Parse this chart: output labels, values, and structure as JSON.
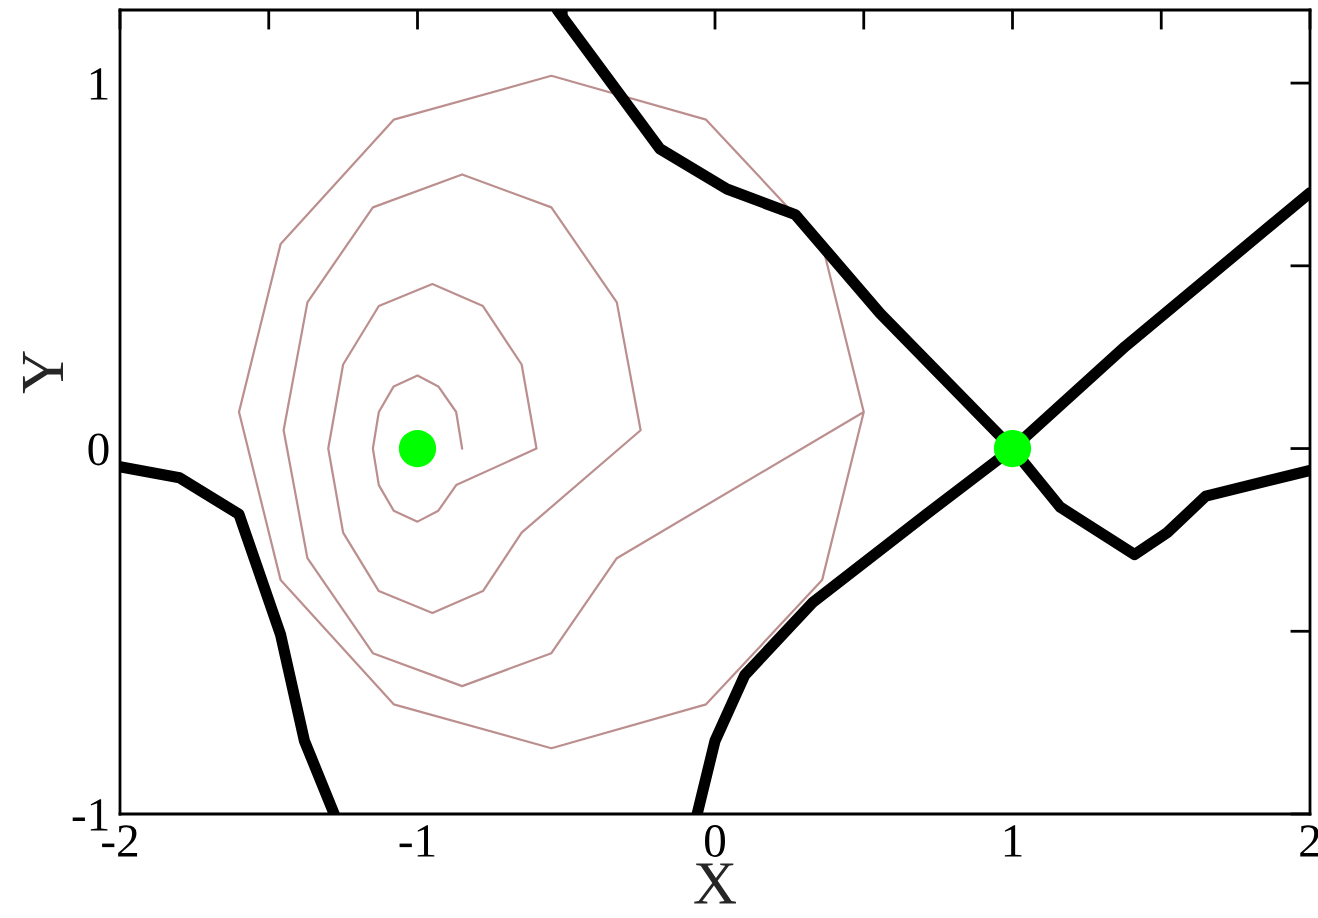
{
  "chart_data": {
    "type": "line",
    "xlabel": "X",
    "ylabel": "Y",
    "xlim": [
      -2,
      2
    ],
    "ylim": [
      -1,
      1.2
    ],
    "xticks": [
      -2,
      {
        "value": -1.5,
        "label": null
      },
      -1,
      {
        "value": -0.5,
        "label": null
      },
      0,
      {
        "value": 0.5,
        "label": null
      },
      1,
      {
        "value": 1.5,
        "label": null
      },
      2
    ],
    "yticks": [
      -1,
      {
        "value": -0.5,
        "label": null
      },
      0,
      {
        "value": 0.5,
        "label": null
      },
      1
    ],
    "grid": false,
    "legend": false,
    "series": [
      {
        "color": "#bc8f8f",
        "marker": "none",
        "x": [
          -0.85,
          -0.87,
          -0.93,
          -1.0,
          -1.08,
          -1.13,
          -1.15,
          -1.13,
          -1.08,
          -1.0,
          -0.93,
          -0.87,
          -0.6,
          -0.65,
          -0.78,
          -0.95,
          -1.13,
          -1.25,
          -1.3,
          -1.25,
          -1.13,
          -0.95,
          -0.78,
          -0.65,
          -0.25,
          -0.33,
          -0.55,
          -0.85,
          -1.15,
          -1.37,
          -1.45,
          -1.37,
          -1.15,
          -0.85,
          -0.55,
          -0.33,
          0.5,
          0.36,
          -0.03,
          -0.55,
          -1.08,
          -1.46,
          -1.6,
          -1.46,
          -1.08,
          -0.55,
          -0.03,
          0.36,
          0.5
        ],
        "values": [
          0,
          0.1,
          0.17,
          0.2,
          0.17,
          0.1,
          0,
          -0.1,
          -0.17,
          -0.2,
          -0.17,
          -0.1,
          0,
          0.23,
          0.39,
          0.45,
          0.39,
          0.23,
          0,
          -0.23,
          -0.39,
          -0.45,
          -0.39,
          -0.23,
          0.05,
          0.4,
          0.66,
          0.75,
          0.66,
          0.4,
          0.05,
          -0.3,
          -0.56,
          -0.65,
          -0.56,
          -0.3,
          0.1,
          0.56,
          0.9,
          1.02,
          0.9,
          0.56,
          0.1,
          -0.36,
          -0.7,
          -0.82,
          -0.7,
          -0.36,
          0.1
        ]
      },
      {
        "color": "#000000",
        "marker": "none",
        "x": [
          -2,
          -1.8,
          -1.6,
          -1.46,
          -1.38,
          -1.28
        ],
        "values": [
          -0.05,
          -0.08,
          -0.18,
          -0.51,
          -0.8,
          -1.0
        ]
      },
      {
        "color": "#000000",
        "marker": "none",
        "x": [
          -0.53,
          -0.185,
          0.04,
          0.27,
          0.555,
          1.0,
          1.16,
          1.41,
          1.52,
          1.65,
          2.0
        ],
        "values": [
          1.2,
          0.82,
          0.71,
          0.64,
          0.37,
          0,
          -0.16,
          -0.29,
          -0.23,
          -0.13,
          -0.06
        ]
      },
      {
        "color": "#000000",
        "marker": "none",
        "x": [
          -0.06,
          0.0,
          0.1,
          0.33,
          0.71,
          1.0,
          1.38,
          2.0
        ],
        "values": [
          -1.0,
          -0.8,
          -0.62,
          -0.42,
          -0.18,
          0,
          0.28,
          0.7
        ]
      },
      {
        "type": "scatter",
        "color": "#00ff00",
        "marker": "circle",
        "x": [
          -1,
          1
        ],
        "values": [
          0,
          0
        ]
      }
    ]
  }
}
